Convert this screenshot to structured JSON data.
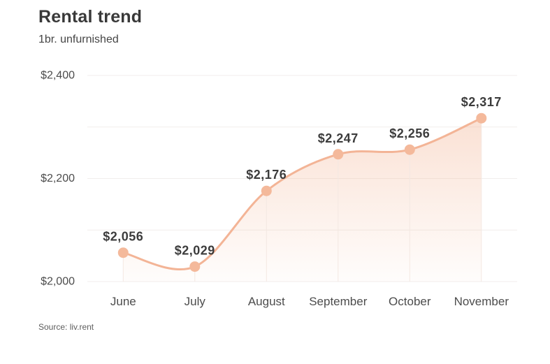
{
  "header": {
    "title": "Rental trend",
    "subtitle": "1br. unfurnished"
  },
  "source": {
    "label": "Source: liv.rent"
  },
  "chart_data": {
    "type": "line",
    "title": "Rental trend",
    "subtitle": "1br. unfurnished",
    "categories": [
      "June",
      "July",
      "August",
      "September",
      "October",
      "November"
    ],
    "values": [
      2056,
      2029,
      2176,
      2247,
      2256,
      2317
    ],
    "value_labels": [
      "$2,056",
      "$2,029",
      "$2,176",
      "$2,247",
      "$2,256",
      "$2,317"
    ],
    "xlabel": "",
    "ylabel": "",
    "ylim": [
      2000,
      2400
    ],
    "yticks": [
      2000,
      2200,
      2400
    ],
    "ytick_labels": [
      "$2,000",
      "$2,200",
      "$2,400"
    ],
    "minor_gridline_step": 100,
    "grid": true,
    "legend": false,
    "area_fill": true,
    "point_drop_lines": true,
    "colors": {
      "line": "#f3b496",
      "point": "#f4b99b",
      "area_top": "rgba(243,180,148,0.40)",
      "area_bottom": "rgba(243,180,148,0.03)",
      "grid": "#f1eeec",
      "drop_line": "#f3e8e2",
      "value_label_text": "#3c3c3c",
      "axis_text": "#4c4c4c"
    }
  }
}
